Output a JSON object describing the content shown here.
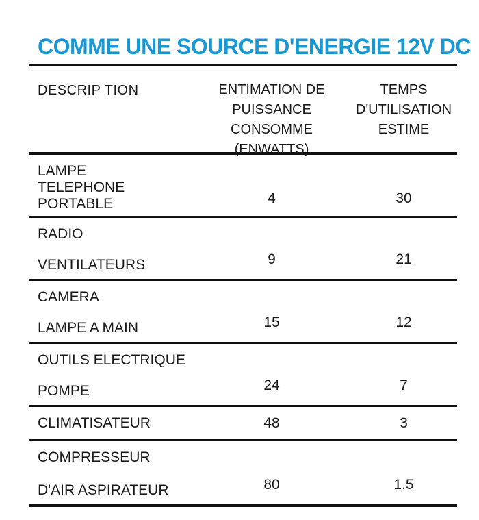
{
  "title": "COMME UNE SOURCE D'ENERGIE 12V DC",
  "colors": {
    "title_blue": "#1899d6",
    "text": "#1a1a1a",
    "rule": "#111111"
  },
  "table": {
    "headers": {
      "description": "DESCRIP TION",
      "power_lines": [
        "ENTIMATION DE",
        "PUISSANCE CONSOMME",
        "(ENWATTS)"
      ],
      "time_lines": [
        "TEMPS",
        "D'UTILISATION",
        "ESTIME"
      ]
    },
    "rows": [
      {
        "desc_lines": [
          "LAMPE",
          "TELEPHONE PORTABLE"
        ],
        "power": "4",
        "time": "30"
      },
      {
        "desc_lines": [
          "RADIO",
          "VENTILATEURS"
        ],
        "power": "9",
        "time": "21"
      },
      {
        "desc_lines": [
          "CAMERA",
          "LAMPE A MAIN"
        ],
        "power": "15",
        "time": "12"
      },
      {
        "desc_lines": [
          "OUTILS ELECTRIQUE",
          "POMPE"
        ],
        "power": "24",
        "time": "7"
      },
      {
        "desc_lines": [
          "CLIMATISATEUR"
        ],
        "power": "48",
        "time": "3"
      },
      {
        "desc_lines": [
          "COMPRESSEUR",
          "D'AIR ASPIRATEUR"
        ],
        "power": "80",
        "time": "1.5"
      }
    ]
  }
}
